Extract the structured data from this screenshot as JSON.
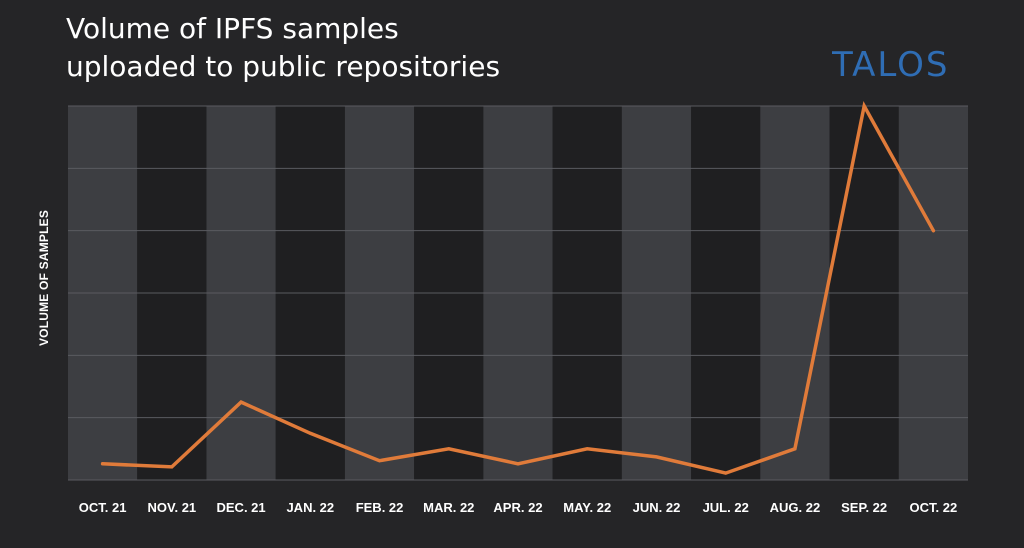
{
  "title_line1": "Volume of IPFS samples",
  "title_line2": "uploaded to public repositories",
  "logo_text": "TALOS",
  "colors": {
    "background": "#252527",
    "band_light": "#3d3e42",
    "band_dark": "#1f1f21",
    "gridline": "#5a5b60",
    "line": "#e07b3a",
    "logo": "#2f6db4"
  },
  "chart_data": {
    "type": "line",
    "title": "Volume of IPFS samples uploaded to public repositories",
    "xlabel": "",
    "ylabel": "VOLUME OF SAMPLES",
    "categories": [
      "OCT. 21",
      "NOV. 21",
      "DEC. 21",
      "JAN. 22",
      "FEB. 22",
      "MAR. 22",
      "APR. 22",
      "MAY. 22",
      "JUN. 22",
      "JUL. 22",
      "AUG. 22",
      "SEP. 22",
      "OCT. 22"
    ],
    "values": [
      0.26,
      0.21,
      1.25,
      0.75,
      0.31,
      0.5,
      0.26,
      0.5,
      0.37,
      0.11,
      0.5,
      6.0,
      4.0
    ],
    "ylim": [
      0,
      6
    ],
    "y_gridlines": 6,
    "y_tick_labels_shown": false,
    "grid": true,
    "alternating_column_bands": true
  }
}
